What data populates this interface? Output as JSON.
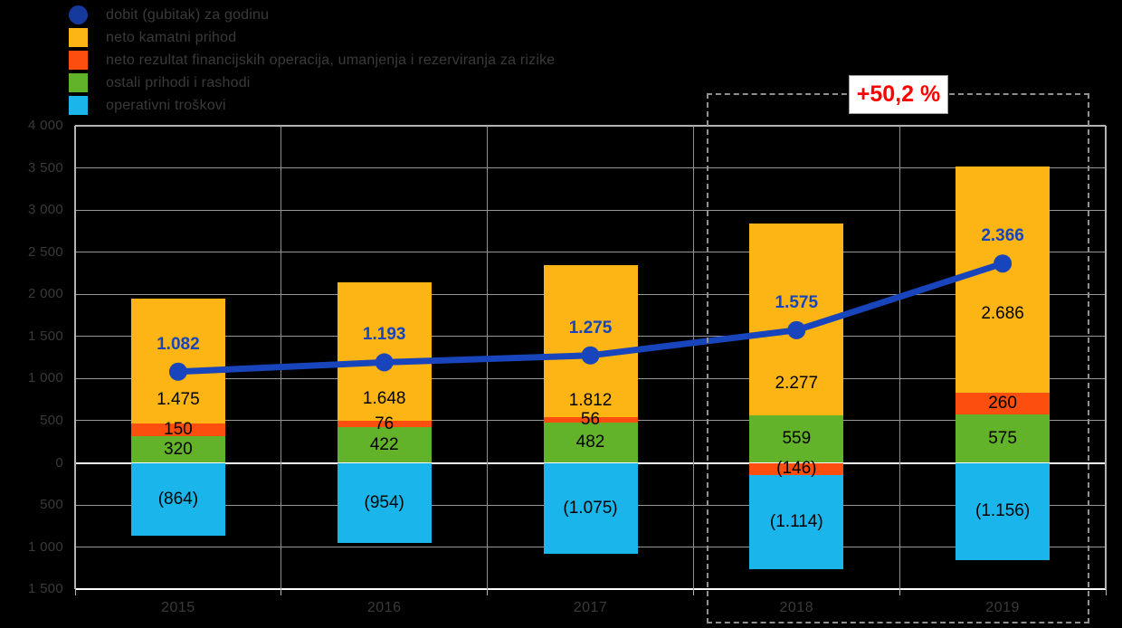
{
  "legend": {
    "items": [
      {
        "name": "dobit-gubitak-za-godinu",
        "label": "dobit (gubitak) za godinu",
        "color": "#16399E",
        "shape": "circle"
      },
      {
        "name": "neto-kamatni-prihod",
        "label": "neto kamatni prihod",
        "color": "#FCB514",
        "shape": "square"
      },
      {
        "name": "neto-rezultat-financijskih-operacija",
        "label": "neto rezultat financijskih operacija, umanjenja i rezerviranja za rizike",
        "color": "#FB4E0F",
        "shape": "square"
      },
      {
        "name": "ostali-prihodi-i-rashodi",
        "label": "ostali prihodi i rashodi",
        "color": "#62B22A",
        "shape": "square"
      },
      {
        "name": "operativni-troskovi",
        "label": "operativni troškovi",
        "color": "#1AB5EA",
        "shape": "square"
      }
    ]
  },
  "annotation": {
    "growth_label": "+50,2 %",
    "text_color": "#FF0000"
  },
  "axes": {
    "y_tick_labels": [
      "4 000",
      "3 500",
      "3 000",
      "2 500",
      "2 000",
      "1 500",
      "1 000",
      "500",
      "0",
      "500",
      "1 000",
      "1 500"
    ],
    "y_tick_values": [
      4000,
      3500,
      3000,
      2500,
      2000,
      1500,
      1000,
      500,
      0,
      -500,
      -1000,
      -1500
    ],
    "x_categories": [
      "2015",
      "2016",
      "2017",
      "2018",
      "2019"
    ]
  },
  "chart_data": {
    "type": "combo-stacked-bar-line",
    "categories": [
      "2015",
      "2016",
      "2017",
      "2018",
      "2019"
    ],
    "ylim": [
      -1500,
      4000
    ],
    "y_step": 500,
    "grid": true,
    "legend_position": "top-left",
    "annotation": "+50,2 %",
    "annotation_scope": [
      "2018",
      "2019"
    ],
    "series": [
      {
        "name": "neto kamatni prihod",
        "type": "bar",
        "color": "#FCB514",
        "values": [
          1475,
          1648,
          1812,
          2277,
          2686
        ],
        "labels": [
          "1.475",
          "1.648",
          "1.812",
          "2.277",
          "2.686"
        ]
      },
      {
        "name": "neto rezultat financijskih operacija, umanjenja i rezerviranja za rizike",
        "type": "bar",
        "color": "#FB4E0F",
        "values": [
          150,
          76,
          56,
          -146,
          260
        ],
        "labels": [
          "150",
          "76",
          "56",
          "(146)",
          "260"
        ]
      },
      {
        "name": "ostali prihodi i rashodi",
        "type": "bar",
        "color": "#62B22A",
        "values": [
          320,
          422,
          482,
          559,
          575
        ],
        "labels": [
          "320",
          "422",
          "482",
          "559",
          "575"
        ]
      },
      {
        "name": "operativni troškovi",
        "type": "bar",
        "color": "#1AB5EA",
        "values": [
          -864,
          -954,
          -1075,
          -1114,
          -1156
        ],
        "labels": [
          "(864)",
          "(954)",
          "(1.075)",
          "(1.114)",
          "(1.156)"
        ]
      },
      {
        "name": "dobit (gubitak) za godinu",
        "type": "line",
        "color": "#1844BC",
        "values": [
          1082,
          1193,
          1275,
          1575,
          2366
        ],
        "labels": [
          "1.082",
          "1.193",
          "1.275",
          "1.575",
          "2.366"
        ]
      }
    ]
  }
}
